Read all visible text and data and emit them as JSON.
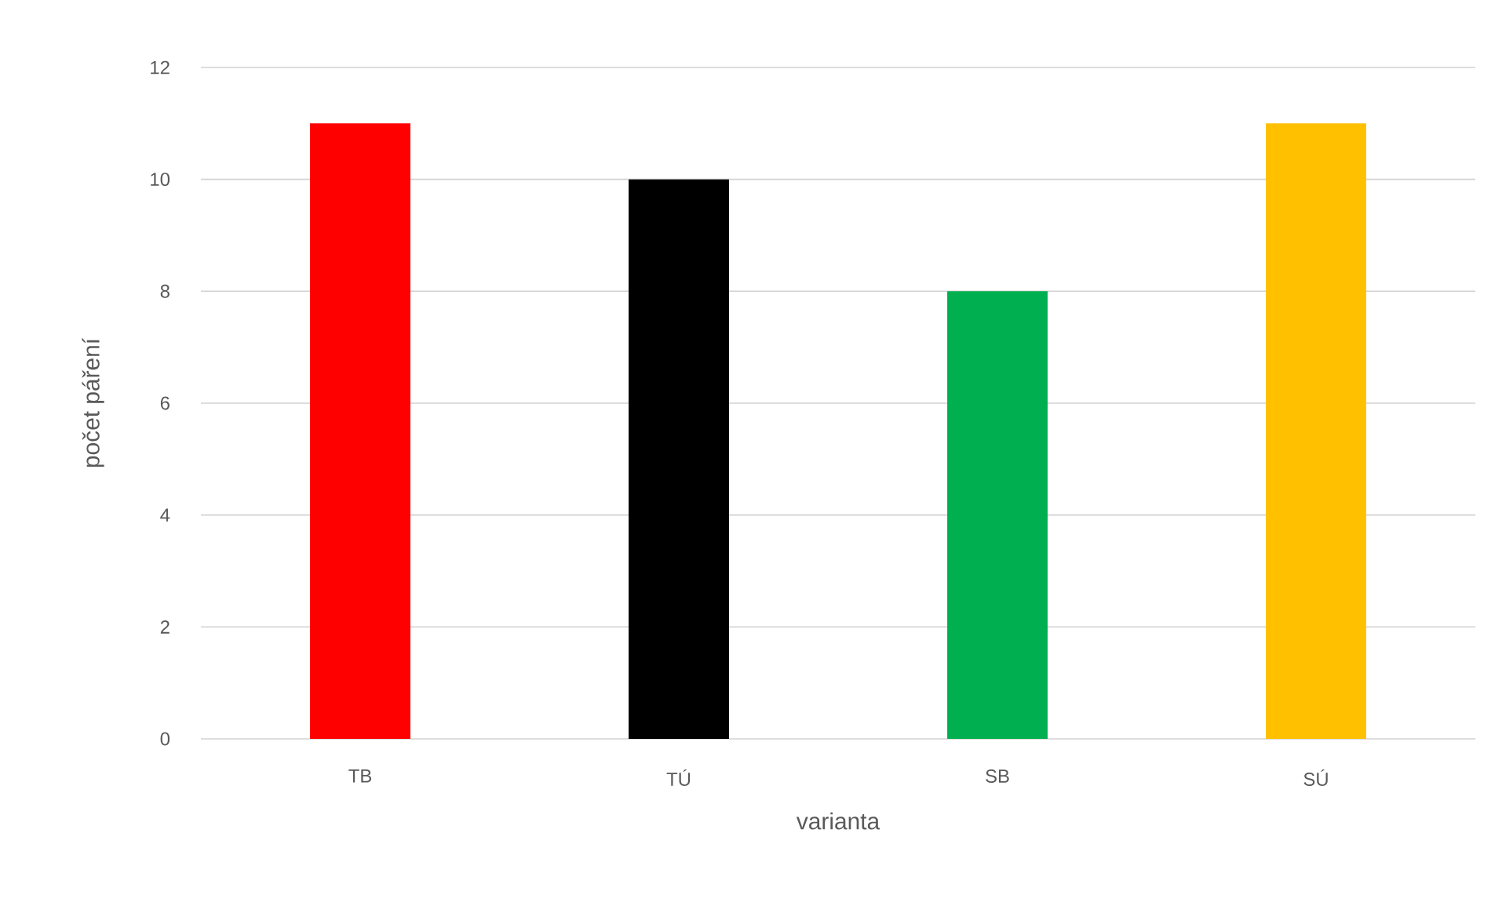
{
  "chart_data": {
    "type": "bar",
    "categories": [
      "TB",
      "TÚ",
      "SB",
      "SÚ"
    ],
    "values": [
      11,
      10,
      8,
      11
    ],
    "colors": [
      "#ff0000",
      "#000000",
      "#00b050",
      "#ffc000"
    ],
    "xlabel": "varianta",
    "ylabel": "počet páření",
    "ylim": [
      0,
      12
    ],
    "yticks": [
      0,
      2,
      4,
      6,
      8,
      10,
      12
    ],
    "grid": "y"
  }
}
